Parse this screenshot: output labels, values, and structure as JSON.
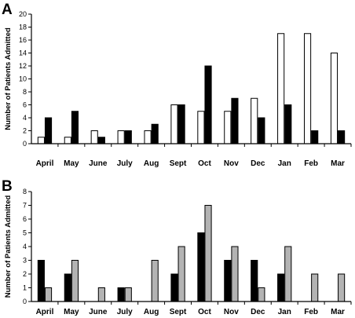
{
  "panels": [
    {
      "letter": "A",
      "chart_data": {
        "type": "bar",
        "title": "",
        "xlabel": "",
        "ylabel": "Number of Patients Admitted",
        "ylim": [
          0,
          20
        ],
        "yticks": [
          0,
          2,
          4,
          6,
          8,
          10,
          12,
          14,
          16,
          18,
          20
        ],
        "grid": false,
        "legend": "none",
        "categories": [
          "April",
          "May",
          "June",
          "July",
          "Aug",
          "Sept",
          "Oct",
          "Nov",
          "Dec",
          "Jan",
          "Feb",
          "Mar"
        ],
        "series": [
          {
            "values": [
              1,
              1,
              2,
              2,
              2,
              6,
              5,
              5,
              7,
              17,
              17,
              14
            ],
            "color": "#ffffff"
          },
          {
            "values": [
              4,
              5,
              1,
              2,
              3,
              6,
              12,
              7,
              4,
              6,
              2,
              2
            ],
            "color": "#000000"
          }
        ]
      }
    },
    {
      "letter": "B",
      "chart_data": {
        "type": "bar",
        "title": "",
        "xlabel": "",
        "ylabel": "Number of Patients Admitted",
        "ylim": [
          0,
          8
        ],
        "yticks": [
          0,
          1,
          2,
          3,
          4,
          5,
          6,
          7,
          8
        ],
        "grid": false,
        "legend": "none",
        "categories": [
          "April",
          "May",
          "June",
          "July",
          "Aug",
          "Sept",
          "Oct",
          "Nov",
          "Dec",
          "Jan",
          "Feb",
          "Mar"
        ],
        "series": [
          {
            "values": [
              3,
              2,
              0,
              1,
              0,
              2,
              5,
              3,
              3,
              2,
              0,
              0
            ],
            "color": "#000000"
          },
          {
            "values": [
              1,
              3,
              1,
              1,
              3,
              4,
              7,
              4,
              1,
              4,
              2,
              2
            ],
            "color": "#b3b3b3"
          }
        ]
      }
    }
  ]
}
